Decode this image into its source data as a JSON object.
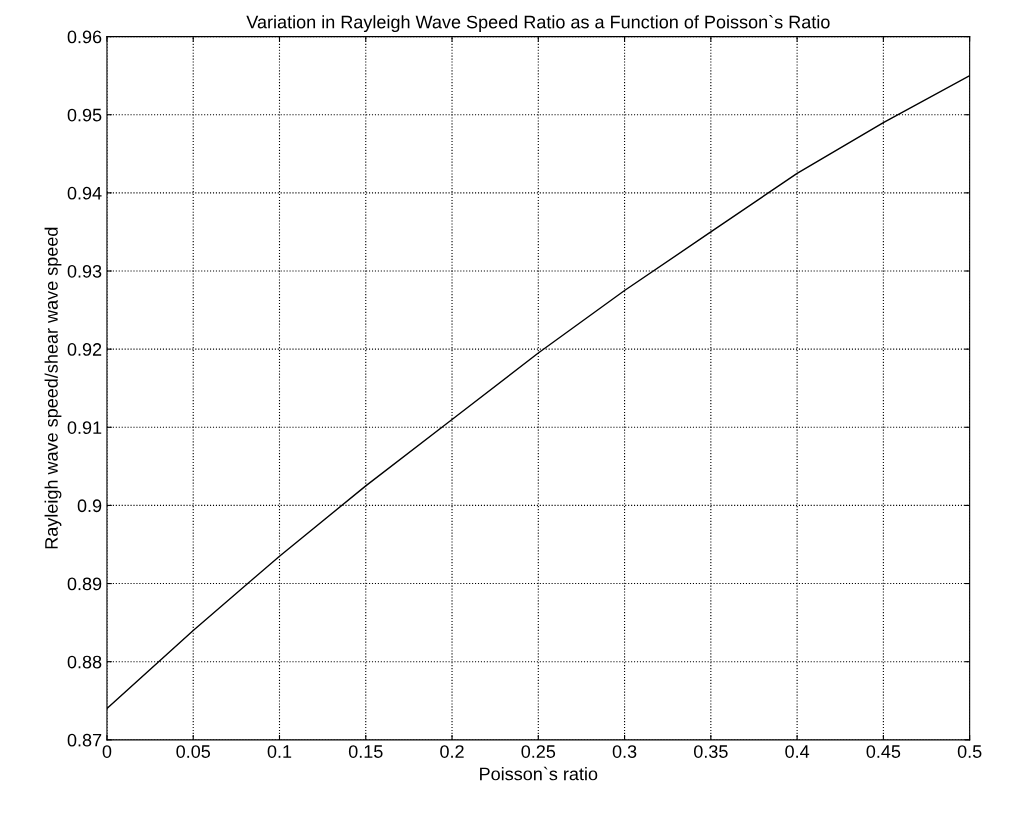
{
  "chart_data": {
    "type": "line",
    "title": "Variation in Rayleigh Wave Speed Ratio as a Function of Poisson`s Ratio",
    "xlabel": "Poisson`s ratio",
    "ylabel": "Rayleigh wave speed/shear wave speed",
    "x": [
      0,
      0.05,
      0.1,
      0.15,
      0.2,
      0.25,
      0.3,
      0.35,
      0.4,
      0.45,
      0.5
    ],
    "series": [
      {
        "color": "#000000",
        "values": [
          0.874,
          0.884,
          0.8935,
          0.9025,
          0.911,
          0.9195,
          0.9275,
          0.935,
          0.9425,
          0.949,
          0.955
        ]
      }
    ],
    "xlim": [
      0,
      0.5
    ],
    "xticks": [
      0,
      0.05,
      0.1,
      0.15,
      0.2,
      0.25,
      0.3,
      0.35,
      0.4,
      0.45,
      0.5
    ],
    "ylim": [
      0.87,
      0.96
    ],
    "yticks": [
      0.87,
      0.88,
      0.89,
      0.9,
      0.91,
      0.92,
      0.93,
      0.94,
      0.95,
      0.96
    ],
    "grid": true,
    "line_style": "solid"
  }
}
